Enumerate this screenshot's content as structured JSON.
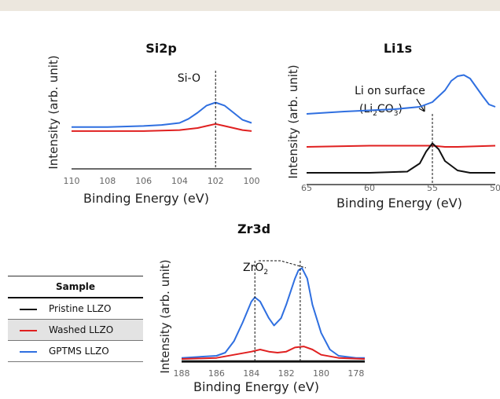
{
  "chart_data": [
    {
      "type": "line",
      "title": "Si2p",
      "xlabel": "Binding Energy (eV)",
      "ylabel": "Intensity (arb. unit)",
      "xlim": [
        110,
        100
      ],
      "ylim": [
        0,
        100
      ],
      "x_reversed": true,
      "xticks": [
        "110",
        "108",
        "106",
        "104",
        "102",
        "100"
      ],
      "grid": false,
      "annotations": [
        {
          "text": "Si-O",
          "x": 102
        }
      ],
      "series": [
        {
          "name": "GPTMS LLZO",
          "color": "#2f6fe0",
          "x": [
            110,
            108,
            106,
            105,
            104,
            103.5,
            103,
            102.5,
            102,
            101.5,
            101,
            100.5,
            100
          ],
          "y": [
            41,
            41,
            42,
            43,
            45,
            49,
            55,
            62,
            65,
            62,
            55,
            48,
            45
          ]
        },
        {
          "name": "Washed LLZO",
          "color": "#e02020",
          "x": [
            110,
            108,
            106,
            104,
            103,
            102.5,
            102,
            101.5,
            101,
            100.5,
            100
          ],
          "y": [
            37,
            37,
            37,
            38,
            40,
            42,
            44,
            42,
            40,
            38,
            37
          ]
        }
      ]
    },
    {
      "type": "line",
      "title": "Li1s",
      "xlabel": "Binding Energy (eV)",
      "ylabel": "Intensity (arb. unit)",
      "xlim": [
        65,
        50
      ],
      "ylim": [
        0,
        100
      ],
      "x_reversed": true,
      "xticks": [
        "65",
        "60",
        "55",
        "50"
      ],
      "grid": false,
      "annotations": [
        {
          "text": "Li on surface",
          "x": 55
        },
        {
          "text": "(Li",
          "x": 55
        },
        {
          "text": "2",
          "x": 55
        },
        {
          "text": "CO",
          "x": 55
        },
        {
          "text": "3",
          "x": 55
        },
        {
          "text": ")",
          "x": 55
        }
      ],
      "series": [
        {
          "name": "GPTMS LLZO",
          "color": "#2f6fe0",
          "x": [
            65,
            62,
            60,
            58,
            56,
            55,
            54,
            53.5,
            53,
            52.5,
            52,
            51,
            50.5,
            50
          ],
          "y": [
            60,
            62,
            63,
            64,
            66,
            70,
            80,
            88,
            92,
            93,
            90,
            75,
            68,
            66
          ]
        },
        {
          "name": "Washed LLZO",
          "color": "#e02020",
          "x": [
            65,
            60,
            57,
            56,
            55,
            54,
            53,
            50
          ],
          "y": [
            32,
            33,
            33,
            33,
            33,
            32,
            32,
            33
          ]
        },
        {
          "name": "Pristine LLZO",
          "color": "#111111",
          "x": [
            65,
            60,
            57,
            56,
            55.5,
            55,
            54.5,
            54,
            53,
            52,
            50
          ],
          "y": [
            10,
            10,
            11,
            18,
            28,
            35,
            30,
            20,
            12,
            10,
            10
          ]
        }
      ]
    },
    {
      "type": "line",
      "title": "Zr3d",
      "xlabel": "Binding Energy (eV)",
      "ylabel": "Intensity (arb. unit)",
      "xlim": [
        188,
        177.5
      ],
      "ylim": [
        0,
        100
      ],
      "x_reversed": true,
      "xticks": [
        "188",
        "186",
        "184",
        "182",
        "180",
        "178"
      ],
      "grid": false,
      "annotations": [
        {
          "text": "ZrO",
          "x": 183.8
        },
        {
          "text": "2",
          "x": 183.8
        }
      ],
      "series": [
        {
          "name": "GPTMS LLZO",
          "color": "#2f6fe0",
          "x": [
            188,
            186,
            185.5,
            185,
            184.5,
            184,
            183.8,
            183.5,
            183,
            182.7,
            182.3,
            182,
            181.5,
            181.3,
            181.1,
            180.8,
            180.5,
            180,
            179.5,
            179,
            178,
            177.5
          ],
          "y": [
            4,
            6,
            9,
            20,
            38,
            58,
            62,
            58,
            42,
            35,
            42,
            55,
            80,
            88,
            90,
            80,
            55,
            28,
            12,
            6,
            4,
            4
          ]
        },
        {
          "name": "Washed LLZO",
          "color": "#e02020",
          "x": [
            188,
            186,
            185,
            184,
            183.5,
            183,
            182.5,
            182,
            181.5,
            181,
            180.5,
            180,
            179,
            177.5
          ],
          "y": [
            3,
            4,
            7,
            10,
            12,
            10,
            9,
            10,
            14,
            15,
            12,
            7,
            4,
            3
          ]
        },
        {
          "name": "Pristine LLZO",
          "color": "#111111",
          "x": [
            188,
            177.5
          ],
          "y": [
            1,
            1
          ]
        }
      ]
    }
  ],
  "legend": {
    "header": "Sample",
    "items": [
      {
        "label": "Pristine LLZO",
        "color": "#111111"
      },
      {
        "label": "Washed LLZO",
        "color": "#e02020"
      },
      {
        "label": "GPTMS LLZO",
        "color": "#2f6fe0"
      }
    ]
  }
}
